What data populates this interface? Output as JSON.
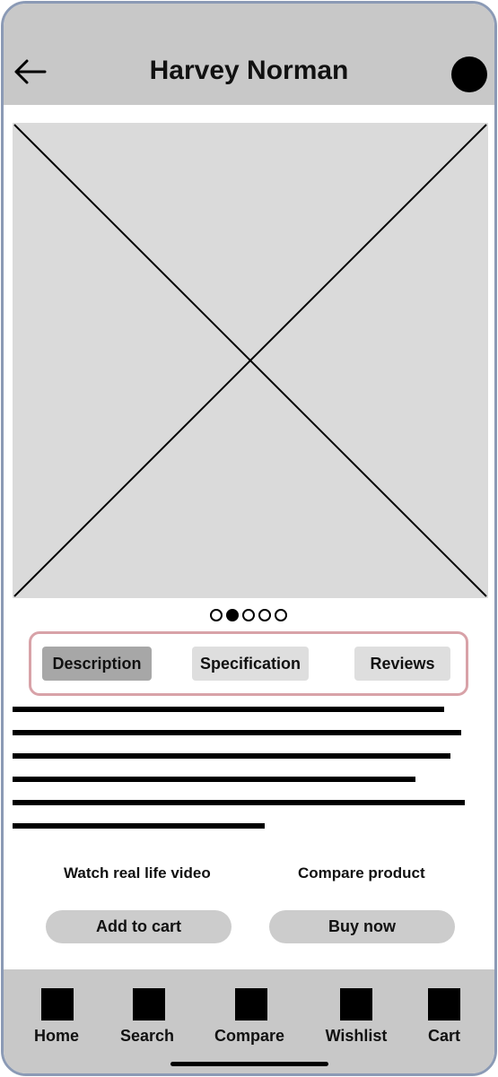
{
  "header": {
    "back_icon": "arrow-left-icon",
    "title": "Harvey Norman",
    "avatar_icon": "profile-circle-icon"
  },
  "product_image": {
    "placeholder_icon": "image-placeholder-icon"
  },
  "carousel": {
    "count": 5,
    "active_index": 1
  },
  "tabs": [
    {
      "label": "Description",
      "selected": true
    },
    {
      "label": "Specification",
      "selected": false
    },
    {
      "label": "Reviews",
      "selected": false
    }
  ],
  "actions": {
    "watch_video": "Watch real life video",
    "compare_product": "Compare product",
    "add_to_cart": "Add to cart",
    "buy_now": "Buy now"
  },
  "bottom_nav": [
    {
      "label": "Home",
      "icon": "home-icon"
    },
    {
      "label": "Search",
      "icon": "search-icon"
    },
    {
      "label": "Compare",
      "icon": "compare-icon"
    },
    {
      "label": "Wishlist",
      "icon": "wishlist-icon"
    },
    {
      "label": "Cart",
      "icon": "cart-icon"
    }
  ],
  "colors": {
    "bar_gray": "#c8c8c8",
    "frame_border": "#8b9ab5",
    "tabs_border": "#d8a2a8",
    "selected_tab": "#a7a7a7"
  }
}
